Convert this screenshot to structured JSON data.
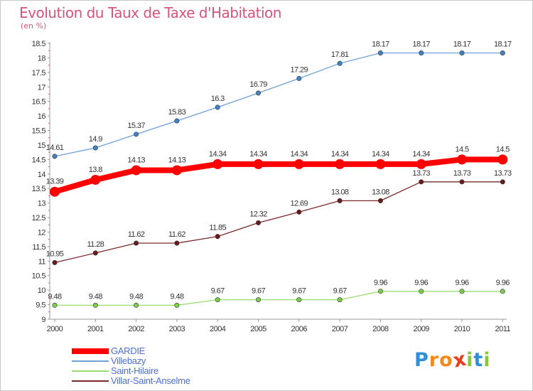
{
  "header": {
    "title": "Evolution du Taux de Taxe d'Habitation",
    "unit": "(en %)"
  },
  "colors": {
    "title": "#d8547a",
    "axis": "#999999",
    "tick_label": "#333333",
    "value_label": "#333333",
    "legend_text": "#4a6fd0"
  },
  "chart_data": {
    "type": "line",
    "title": "Evolution du Taux de Taxe d'Habitation",
    "subtitle": "(en %)",
    "xlabel": "",
    "ylabel": "",
    "x": [
      "2000",
      "2001",
      "2002",
      "2003",
      "2004",
      "2005",
      "2006",
      "2007",
      "2008",
      "2009",
      "2010",
      "2011"
    ],
    "ylim": [
      9,
      18.5
    ],
    "yticks": [
      9,
      9.5,
      10,
      10.5,
      11,
      11.5,
      12,
      12.5,
      13,
      13.5,
      14,
      14.5,
      15,
      15.5,
      16,
      16.5,
      17,
      17.5,
      18,
      18.5
    ],
    "grid": false,
    "legend_position": "bottom-left",
    "series": [
      {
        "name": "GARDIE",
        "color": "#ff0000",
        "marker_color": "#ff0000",
        "emphasis": true,
        "values": [
          13.39,
          13.8,
          14.13,
          14.13,
          14.34,
          14.34,
          14.34,
          14.34,
          14.34,
          14.34,
          14.5,
          14.5
        ],
        "labels": [
          "13.39",
          "13.8",
          "14.13",
          "14.13",
          "14.34",
          "14.34",
          "14.34",
          "14.34",
          "14.34",
          "14.34",
          "14.5",
          "14.5"
        ]
      },
      {
        "name": "Villebazy",
        "color": "#6fa0d8",
        "marker_color": "#3f84c8",
        "emphasis": false,
        "values": [
          14.61,
          14.9,
          15.37,
          15.83,
          16.3,
          16.79,
          17.29,
          17.81,
          18.17,
          18.17,
          18.17,
          18.17
        ],
        "labels": [
          "14.61",
          "14.9",
          "15.37",
          "15.83",
          "16.3",
          "16.79",
          "17.29",
          "17.81",
          "18.17",
          "18.17",
          "18.17",
          "18.17"
        ]
      },
      {
        "name": "Saint-Hilaire",
        "color": "#9bdc70",
        "marker_color": "#7bd04a",
        "emphasis": false,
        "values": [
          9.48,
          9.48,
          9.48,
          9.48,
          9.67,
          9.67,
          9.67,
          9.67,
          9.96,
          9.96,
          9.96,
          9.96
        ],
        "labels": [
          "9.48",
          "9.48",
          "9.48",
          "9.48",
          "9.67",
          "9.67",
          "9.67",
          "9.67",
          "9.96",
          "9.96",
          "9.96",
          "9.96"
        ]
      },
      {
        "name": "Villar-Saint-Anselme",
        "color": "#7a2a2a",
        "marker_color": "#6a1a1a",
        "emphasis": false,
        "values": [
          10.95,
          11.28,
          11.62,
          11.62,
          11.85,
          12.32,
          12.69,
          13.08,
          13.08,
          13.73,
          13.73,
          13.73
        ],
        "labels": [
          "10.95",
          "11.28",
          "11.62",
          "11.62",
          "11.85",
          "12.32",
          "12.69",
          "13.08",
          "13.08",
          "13.73",
          "13.73",
          "13.73"
        ]
      }
    ]
  },
  "logo": {
    "chars": [
      "P",
      "r",
      "o",
      "x",
      "i",
      "t",
      "i"
    ],
    "colors": [
      "#2f8fd8",
      "#f08a1c",
      "#f08a1c",
      "#e83c1c",
      "#8cc63e",
      "#2f8fd8",
      "#8cc63e"
    ]
  }
}
